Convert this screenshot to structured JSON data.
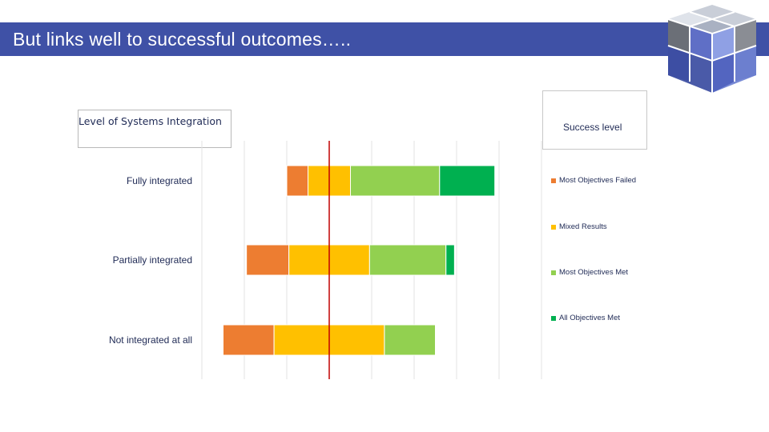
{
  "slide": {
    "title": "But links well to successful outcomes…..",
    "title_bar_color": "#3f51a6"
  },
  "logo": {
    "icon": "cube-logo-icon"
  },
  "chart_data": {
    "type": "bar",
    "orientation": "horizontal",
    "stacked": "diverging",
    "legend_title": "Level of Systems Integration",
    "legend_heading": "Success  level",
    "categories": [
      "Fully integrated",
      "Partially integrated",
      "Not integrated at all"
    ],
    "series": [
      {
        "name": "Most Objectives Failed",
        "color": "#ed7d31",
        "values": [
          5,
          10,
          12
        ]
      },
      {
        "name": "Mixed Results",
        "color": "#ffc000",
        "values": [
          10,
          19,
          26
        ]
      },
      {
        "name": "Most Objectives Met",
        "color": "#92d050",
        "values": [
          21,
          18,
          12
        ]
      },
      {
        "name": "All Objectives Met",
        "color": "#00b050",
        "values": [
          13,
          2,
          0
        ]
      }
    ],
    "xlim": [
      -30,
      50
    ],
    "grid_step": 10,
    "grid": true,
    "reference_line": {
      "value": 0,
      "color": "#c00000"
    },
    "legend_position": "right"
  }
}
